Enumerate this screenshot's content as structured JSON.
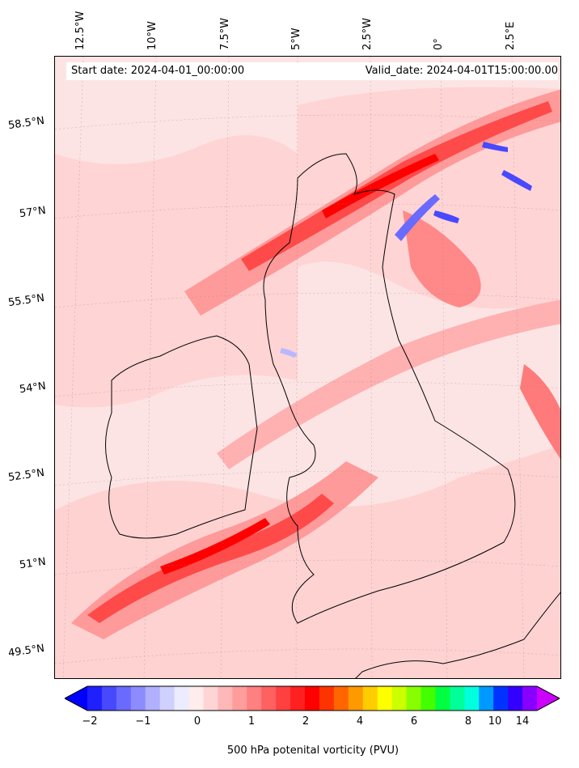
{
  "header": {
    "start_label": "Start date: 2024-04-01_00:00:00",
    "valid_label": "Valid_date: 2024-04-01T15:00:00.00"
  },
  "longitude_labels": [
    "12.5°W",
    "10°W",
    "7.5°W",
    "5°W",
    "2.5°W",
    "0°",
    "2.5°E"
  ],
  "latitude_labels": [
    "58.5°N",
    "57°N",
    "55.5°N",
    "54°N",
    "52.5°N",
    "51°N",
    "49.5°N"
  ],
  "colorbar": {
    "label": "500 hPa potenital vorticity (PVU)",
    "ticks": [
      "−2",
      "−1",
      "0",
      "1",
      "2",
      "4",
      "6",
      "8",
      "10",
      "14"
    ],
    "colors": [
      "#0000ff",
      "#2020ff",
      "#4848ff",
      "#6a6aff",
      "#8c8cff",
      "#b0b0ff",
      "#d0d0ff",
      "#ececff",
      "#ffecec",
      "#ffd4d4",
      "#ffb8b8",
      "#ff9c9c",
      "#ff8080",
      "#ff6060",
      "#ff4040",
      "#ff2020",
      "#ff0000",
      "#ff3300",
      "#ff6600",
      "#ff9900",
      "#ffcc00",
      "#ffff00",
      "#ccff00",
      "#88ff00",
      "#44ff00",
      "#00ff40",
      "#00ff99",
      "#00ffdd",
      "#0099ff",
      "#0033ff",
      "#3300ff",
      "#8800ff",
      "#cc00ff"
    ]
  },
  "field_colors": {
    "background": "#fde4e4",
    "light": "#ffcfcf",
    "medium": "#ff9a9a",
    "strong": "#ff4a4a",
    "max": "#ff0000",
    "negative": "#b8b8ff",
    "coast": "#000000"
  }
}
